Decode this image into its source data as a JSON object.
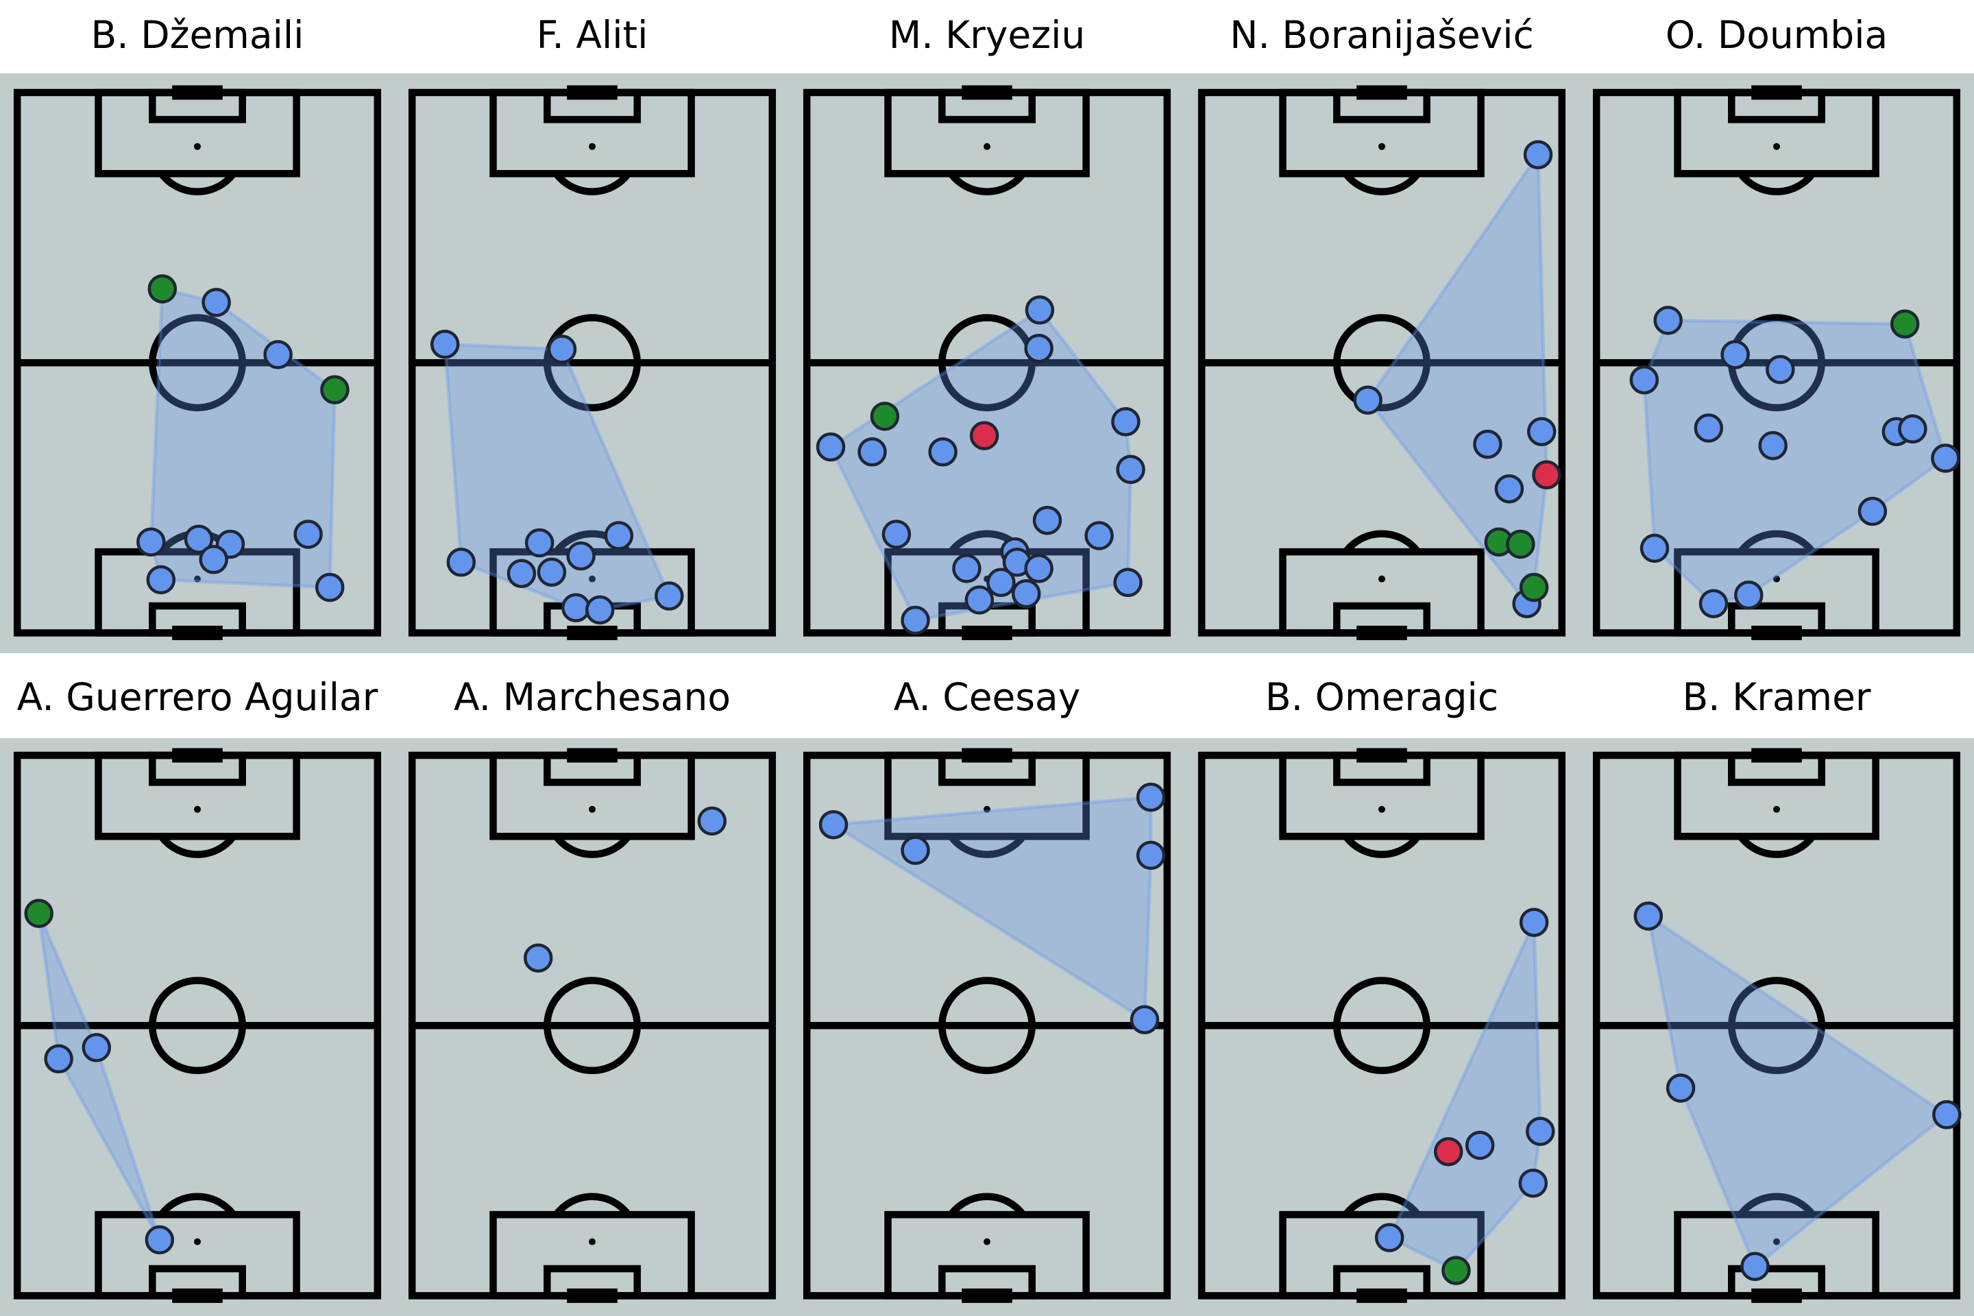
{
  "colors": {
    "background": "#ffffff",
    "pitch": "#c1cdcd",
    "lines": "#000000",
    "hull": "#6495ed",
    "point_edge": "#1f2633"
  },
  "chart_data": [
    {
      "type": "scatter",
      "title": "B. Džemaili",
      "xlim": [
        0,
        80
      ],
      "ylim": [
        0,
        120
      ],
      "grid": false,
      "series": [
        {
          "color": "#6495ed",
          "points": [
            [
              44.2,
              73.4
            ],
            [
              57.9,
              61.8
            ],
            [
              64.6,
              21.9
            ],
            [
              69.4,
              10.1
            ],
            [
              29.7,
              20.2
            ],
            [
              31.9,
              11.8
            ],
            [
              40.3,
              20.8
            ],
            [
              47.3,
              19.7
            ],
            [
              43.6,
              16.3
            ]
          ]
        },
        {
          "color": "#1f8a2b",
          "points": [
            [
              32.2,
              76.4
            ],
            [
              70.5,
              54.0
            ]
          ]
        }
      ]
    },
    {
      "type": "scatter",
      "title": "F. Aliti",
      "xlim": [
        0,
        80
      ],
      "ylim": [
        0,
        120
      ],
      "grid": false,
      "series": [
        {
          "color": "#6495ed",
          "points": [
            [
              7.3,
              64.1
            ],
            [
              33.3,
              63.0
            ],
            [
              10.9,
              15.7
            ],
            [
              28.3,
              20.0
            ],
            [
              24.3,
              13.2
            ],
            [
              31.0,
              13.5
            ],
            [
              37.5,
              17.1
            ],
            [
              45.9,
              21.6
            ],
            [
              36.4,
              5.6
            ],
            [
              41.7,
              5.1
            ],
            [
              57.1,
              8.2
            ]
          ]
        }
      ]
    },
    {
      "type": "scatter",
      "title": "M. Kryeziu",
      "xlim": [
        0,
        80
      ],
      "ylim": [
        0,
        120
      ],
      "grid": false,
      "series": [
        {
          "color": "#6495ed",
          "points": [
            [
              51.7,
              71.7
            ],
            [
              51.5,
              63.2
            ],
            [
              5.3,
              41.3
            ],
            [
              14.5,
              40.2
            ],
            [
              30.2,
              40.2
            ],
            [
              70.8,
              46.9
            ],
            [
              71.9,
              36.3
            ],
            [
              19.9,
              21.9
            ],
            [
              53.4,
              25.0
            ],
            [
              64.9,
              21.6
            ],
            [
              35.5,
              14.3
            ],
            [
              46.2,
              18.0
            ],
            [
              46.7,
              15.7
            ],
            [
              51.5,
              14.3
            ],
            [
              43.1,
              11.2
            ],
            [
              48.7,
              8.7
            ],
            [
              38.3,
              7.3
            ],
            [
              24.1,
              2.8
            ],
            [
              71.3,
              11.2
            ]
          ]
        },
        {
          "color": "#1f8a2b",
          "points": [
            [
              17.3,
              48.1
            ]
          ]
        },
        {
          "color": "#dc2e4a",
          "points": [
            [
              39.4,
              43.8
            ]
          ]
        }
      ]
    },
    {
      "type": "scatter",
      "title": "N. Boranijašević",
      "xlim": [
        0,
        80
      ],
      "ylim": [
        0,
        120
      ],
      "grid": false,
      "series": [
        {
          "color": "#6495ed",
          "points": [
            [
              74.7,
              106.2
            ],
            [
              36.9,
              51.7
            ],
            [
              63.5,
              41.9
            ],
            [
              75.5,
              44.7
            ],
            [
              68.3,
              32.0
            ],
            [
              72.2,
              6.5
            ]
          ]
        },
        {
          "color": "#1f8a2b",
          "points": [
            [
              66.0,
              20.2
            ],
            [
              70.8,
              19.7
            ],
            [
              73.8,
              10.1
            ]
          ]
        },
        {
          "color": "#dc2e4a",
          "points": [
            [
              76.6,
              35.1
            ]
          ]
        }
      ]
    },
    {
      "type": "scatter",
      "title": "O. Doumbia",
      "xlim": [
        0,
        80
      ],
      "ylim": [
        0,
        120
      ],
      "grid": false,
      "series": [
        {
          "color": "#6495ed",
          "points": [
            [
              15.9,
              69.4
            ],
            [
              30.8,
              61.8
            ],
            [
              40.8,
              58.5
            ],
            [
              10.6,
              56.2
            ],
            [
              24.9,
              45.5
            ],
            [
              39.2,
              41.6
            ],
            [
              66.6,
              44.7
            ],
            [
              70.2,
              45.3
            ],
            [
              77.5,
              38.8
            ],
            [
              61.3,
              27.0
            ],
            [
              12.9,
              18.8
            ],
            [
              26.0,
              6.5
            ],
            [
              33.8,
              8.4
            ]
          ]
        },
        {
          "color": "#1f8a2b",
          "points": [
            [
              68.5,
              68.6
            ]
          ]
        }
      ]
    },
    {
      "type": "scatter",
      "title": "A. Guerrero Aguilar",
      "xlim": [
        0,
        80
      ],
      "ylim": [
        0,
        120
      ],
      "grid": false,
      "series": [
        {
          "color": "#6495ed",
          "points": [
            [
              9.2,
              52.6
            ],
            [
              17.6,
              55.1
            ],
            [
              31.6,
              12.4
            ]
          ]
        },
        {
          "color": "#1f8a2b",
          "points": [
            [
              4.8,
              84.9
            ]
          ]
        }
      ]
    },
    {
      "type": "scatter",
      "title": "A. Marchesano",
      "xlim": [
        0,
        80
      ],
      "ylim": [
        0,
        120
      ],
      "grid": false,
      "series": [
        {
          "color": "#6495ed",
          "points": [
            [
              66.6,
              105.4
            ],
            [
              28.0,
              75.0
            ]
          ]
        }
      ]
    },
    {
      "type": "scatter",
      "title": "A. Ceesay",
      "xlim": [
        0,
        80
      ],
      "ylim": [
        0,
        120
      ],
      "grid": false,
      "series": [
        {
          "color": "#6495ed",
          "points": [
            [
              5.9,
              104.6
            ],
            [
              24.1,
              98.9
            ],
            [
              76.4,
              110.7
            ],
            [
              76.4,
              97.8
            ],
            [
              75.0,
              61.3
            ]
          ]
        }
      ]
    },
    {
      "type": "scatter",
      "title": "B. Omeragic",
      "xlim": [
        0,
        80
      ],
      "ylim": [
        0,
        120
      ],
      "grid": false,
      "series": [
        {
          "color": "#6495ed",
          "points": [
            [
              73.8,
              82.9
            ],
            [
              75.2,
              36.5
            ],
            [
              61.8,
              33.4
            ],
            [
              73.6,
              25.0
            ],
            [
              41.7,
              12.9
            ]
          ]
        },
        {
          "color": "#1f8a2b",
          "points": [
            [
              56.5,
              5.6
            ]
          ]
        },
        {
          "color": "#dc2e4a",
          "points": [
            [
              54.8,
              32.0
            ]
          ]
        }
      ]
    },
    {
      "type": "scatter",
      "title": "B. Kramer",
      "xlim": [
        0,
        80
      ],
      "ylim": [
        0,
        120
      ],
      "grid": false,
      "series": [
        {
          "color": "#6495ed",
          "points": [
            [
              11.5,
              84.3
            ],
            [
              18.7,
              46.1
            ],
            [
              77.8,
              40.2
            ],
            [
              35.2,
              6.5
            ]
          ]
        }
      ]
    }
  ]
}
